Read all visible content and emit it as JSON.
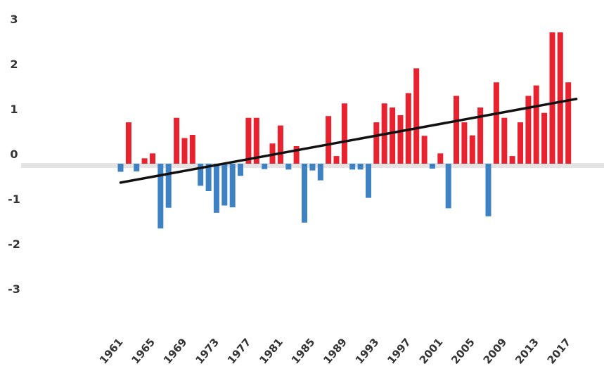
{
  "chart_data": {
    "type": "bar",
    "title": "",
    "xlabel": "",
    "ylabel": "",
    "ylim": [
      -3,
      3
    ],
    "yticks": [
      3,
      2,
      1,
      0,
      -1,
      -2,
      -3
    ],
    "xtick_labels": [
      "1961",
      "1965",
      "1969",
      "1973",
      "1977",
      "1981",
      "1985",
      "1989",
      "1993",
      "1997",
      "2001",
      "2005",
      "2009",
      "2013",
      "2017"
    ],
    "x": [
      1961,
      1962,
      1963,
      1964,
      1965,
      1966,
      1967,
      1968,
      1969,
      1970,
      1971,
      1972,
      1973,
      1974,
      1975,
      1976,
      1977,
      1978,
      1979,
      1980,
      1981,
      1982,
      1983,
      1984,
      1985,
      1986,
      1987,
      1988,
      1989,
      1990,
      1991,
      1992,
      1993,
      1994,
      1995,
      1996,
      1997,
      1998,
      1999,
      2000,
      2001,
      2002,
      2003,
      2004,
      2005,
      2006,
      2007,
      2008,
      2009,
      2010,
      2011,
      2012,
      2013,
      2014,
      2015,
      2016,
      2017,
      2018
    ],
    "values": [
      -0.18,
      0.92,
      -0.17,
      0.12,
      0.23,
      -1.44,
      -0.98,
      1.02,
      0.57,
      0.64,
      -0.49,
      -0.61,
      -1.09,
      -0.93,
      -0.97,
      -0.27,
      1.02,
      1.02,
      -0.12,
      0.45,
      0.85,
      -0.13,
      0.39,
      -1.31,
      -0.15,
      -0.37,
      1.06,
      0.17,
      1.34,
      -0.13,
      -0.13,
      -0.76,
      0.92,
      1.34,
      1.25,
      1.08,
      1.57,
      2.12,
      0.62,
      -0.11,
      0.23,
      -0.99,
      1.51,
      0.92,
      0.63,
      1.25,
      -1.17,
      1.81,
      1.02,
      0.17,
      0.92,
      1.51,
      1.74,
      1.13,
      2.92,
      2.92,
      1.81,
      null
    ],
    "trend": {
      "x": [
        1961,
        2018
      ],
      "y": [
        -0.42,
        1.44
      ]
    },
    "colors": {
      "positive": "#e8232f",
      "negative": "#3f82c3",
      "trend": "#111111",
      "zero_band": "#e4e4e4"
    },
    "grid": false,
    "legend": "none"
  }
}
